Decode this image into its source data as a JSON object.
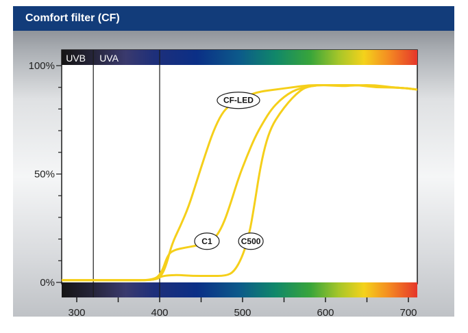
{
  "title": "Comfort filter (CF)",
  "chart_data": {
    "type": "line",
    "title": "Comfort filter (CF)",
    "xlabel": "",
    "ylabel": "",
    "xlim": [
      282,
      710
    ],
    "ylim": [
      0,
      100
    ],
    "x_ticks": [
      300,
      400,
      500,
      600,
      700
    ],
    "y_ticks": [
      {
        "value": 0,
        "label": "0%"
      },
      {
        "value": 50,
        "label": "50%"
      },
      {
        "value": 100,
        "label": "100%"
      }
    ],
    "bands": [
      {
        "label": "UVB",
        "from": 282,
        "to": 320
      },
      {
        "label": "UVA",
        "from": 320,
        "to": 400
      }
    ],
    "line_color": "#f5cf1a",
    "series": [
      {
        "name": "CF-LED",
        "x": [
          282,
          320,
          360,
          395,
          402,
          408,
          415,
          425,
          435,
          445,
          455,
          465,
          475,
          485,
          495,
          505,
          520,
          540,
          560,
          580,
          600,
          620,
          640,
          660,
          680,
          700,
          710
        ],
        "y": [
          1,
          1,
          1,
          1,
          3,
          8,
          18,
          26,
          35,
          47,
          59,
          70,
          78,
          82,
          84,
          86,
          88,
          89,
          90,
          91,
          91,
          90.5,
          91,
          91,
          90,
          89.5,
          89
        ]
      },
      {
        "name": "C1",
        "x": [
          282,
          320,
          360,
          392,
          402,
          410,
          418,
          430,
          445,
          455,
          462,
          470,
          478,
          486,
          495,
          505,
          515,
          525,
          535,
          545,
          555,
          565,
          575,
          590,
          605,
          620,
          640,
          660,
          680,
          700,
          710
        ],
        "y": [
          1,
          1,
          1,
          1,
          4,
          13,
          15,
          16,
          17,
          18,
          19,
          22,
          28,
          37,
          48,
          58,
          67,
          74,
          80,
          84,
          87,
          89,
          90,
          91,
          91,
          91,
          91,
          90,
          90,
          89.5,
          89
        ]
      },
      {
        "name": "C500",
        "x": [
          282,
          320,
          360,
          395,
          402,
          420,
          440,
          460,
          480,
          490,
          500,
          508,
          514,
          520,
          527,
          535,
          545,
          555,
          565,
          575,
          590,
          605,
          620,
          640,
          660,
          680,
          700,
          710
        ],
        "y": [
          1,
          1,
          1,
          1,
          3,
          3.5,
          3,
          3,
          3,
          5,
          12,
          22,
          35,
          50,
          63,
          72,
          78,
          83,
          87,
          90,
          91,
          91,
          91,
          91,
          90.5,
          90,
          89.5,
          89
        ]
      }
    ],
    "annotations": [
      {
        "text": "CF-LED",
        "series": "CF-LED",
        "x": 495,
        "y": 84
      },
      {
        "text": "C1",
        "series": "C1",
        "x": 457,
        "y": 19
      },
      {
        "text": "C500",
        "series": "C500",
        "x": 510,
        "y": 19
      }
    ]
  }
}
